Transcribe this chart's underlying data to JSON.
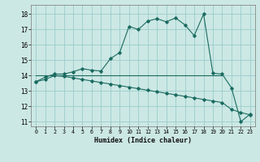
{
  "xlabel": "Humidex (Indice chaleur)",
  "bg_color": "#cce8e4",
  "grid_color": "#99cccc",
  "line_color": "#1a6b60",
  "xlim": [
    -0.5,
    23.5
  ],
  "ylim": [
    10.7,
    18.6
  ],
  "yticks": [
    11,
    12,
    13,
    14,
    15,
    16,
    17,
    18
  ],
  "xticks": [
    0,
    1,
    2,
    3,
    4,
    5,
    6,
    7,
    8,
    9,
    10,
    11,
    12,
    13,
    14,
    15,
    16,
    17,
    18,
    19,
    20,
    21,
    22,
    23
  ],
  "line1_x": [
    0,
    1,
    2,
    3,
    4,
    5,
    6,
    7,
    8,
    9,
    10,
    11,
    12,
    13,
    14,
    15,
    16,
    17,
    18,
    19,
    20,
    21,
    22,
    23
  ],
  "line1_y": [
    13.6,
    13.9,
    14.1,
    14.1,
    14.25,
    14.45,
    14.35,
    14.3,
    15.1,
    15.5,
    17.2,
    17.0,
    17.55,
    17.7,
    17.5,
    17.75,
    17.3,
    16.6,
    18.0,
    14.15,
    14.1,
    13.2,
    11.0,
    11.5
  ],
  "line2_x": [
    0,
    1,
    2,
    3,
    4,
    5,
    6,
    7,
    8,
    9,
    10,
    11,
    12,
    13,
    14,
    15,
    16,
    17,
    18,
    19,
    20,
    21,
    22,
    23
  ],
  "line2_y": [
    13.6,
    13.75,
    14.0,
    13.95,
    13.85,
    13.75,
    13.65,
    13.55,
    13.45,
    13.35,
    13.25,
    13.15,
    13.05,
    12.95,
    12.85,
    12.75,
    12.65,
    12.55,
    12.45,
    12.35,
    12.25,
    11.8,
    11.6,
    11.45
  ],
  "line3_x": [
    0,
    20
  ],
  "line3_y": [
    14.0,
    14.0
  ]
}
